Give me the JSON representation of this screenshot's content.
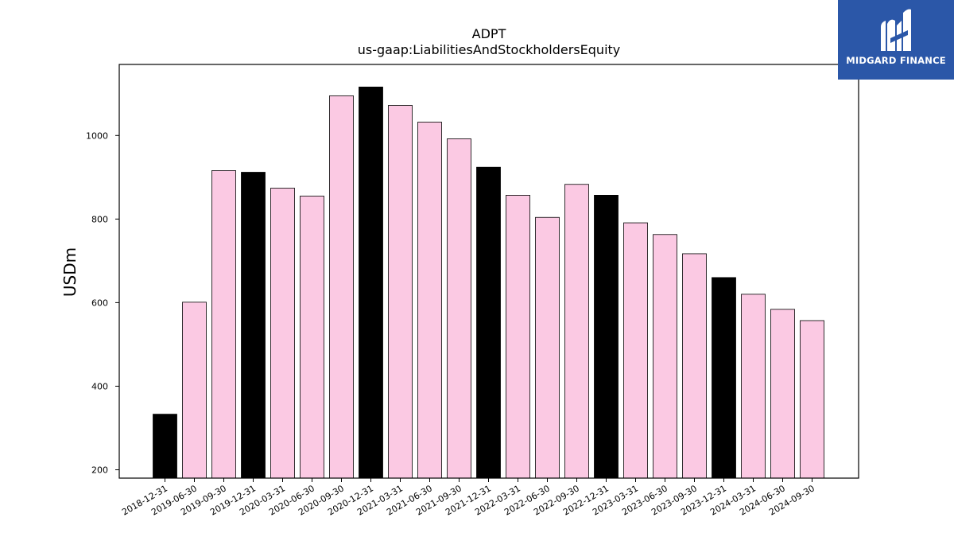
{
  "chart_data": {
    "type": "bar",
    "title": "ADPT",
    "subtitle": "us-gaap:LiabilitiesAndStockholdersEquity",
    "xlabel": "",
    "ylabel": "USDm",
    "ylim": [
      180,
      1170
    ],
    "yticks": [
      200,
      400,
      600,
      800,
      1000
    ],
    "grid": false,
    "legend": "none",
    "colors": {
      "annual": "#000000",
      "quarterly": "#fbc9e3",
      "edge": "#000000"
    },
    "categories": [
      "2018-12-31",
      "2019-06-30",
      "2019-09-30",
      "2019-12-31",
      "2020-03-31",
      "2020-06-30",
      "2020-09-30",
      "2020-12-31",
      "2021-03-31",
      "2021-06-30",
      "2021-09-30",
      "2021-12-31",
      "2022-03-31",
      "2022-06-30",
      "2022-09-30",
      "2022-12-31",
      "2023-03-31",
      "2023-06-30",
      "2023-09-30",
      "2023-12-31",
      "2024-03-31",
      "2024-06-30",
      "2024-09-30"
    ],
    "values": [
      333,
      601,
      916,
      912,
      874,
      855,
      1095,
      1116,
      1072,
      1032,
      992,
      924,
      857,
      804,
      883,
      857,
      791,
      763,
      717,
      660,
      620,
      584,
      557
    ],
    "period_type": [
      "annual",
      "quarterly",
      "quarterly",
      "annual",
      "quarterly",
      "quarterly",
      "quarterly",
      "annual",
      "quarterly",
      "quarterly",
      "quarterly",
      "annual",
      "quarterly",
      "quarterly",
      "quarterly",
      "annual",
      "quarterly",
      "quarterly",
      "quarterly",
      "annual",
      "quarterly",
      "quarterly",
      "quarterly"
    ]
  },
  "logo": {
    "text": "MIDGARD FINANCE",
    "icon": "midgard-logo-icon",
    "background": "#2b57a8"
  }
}
